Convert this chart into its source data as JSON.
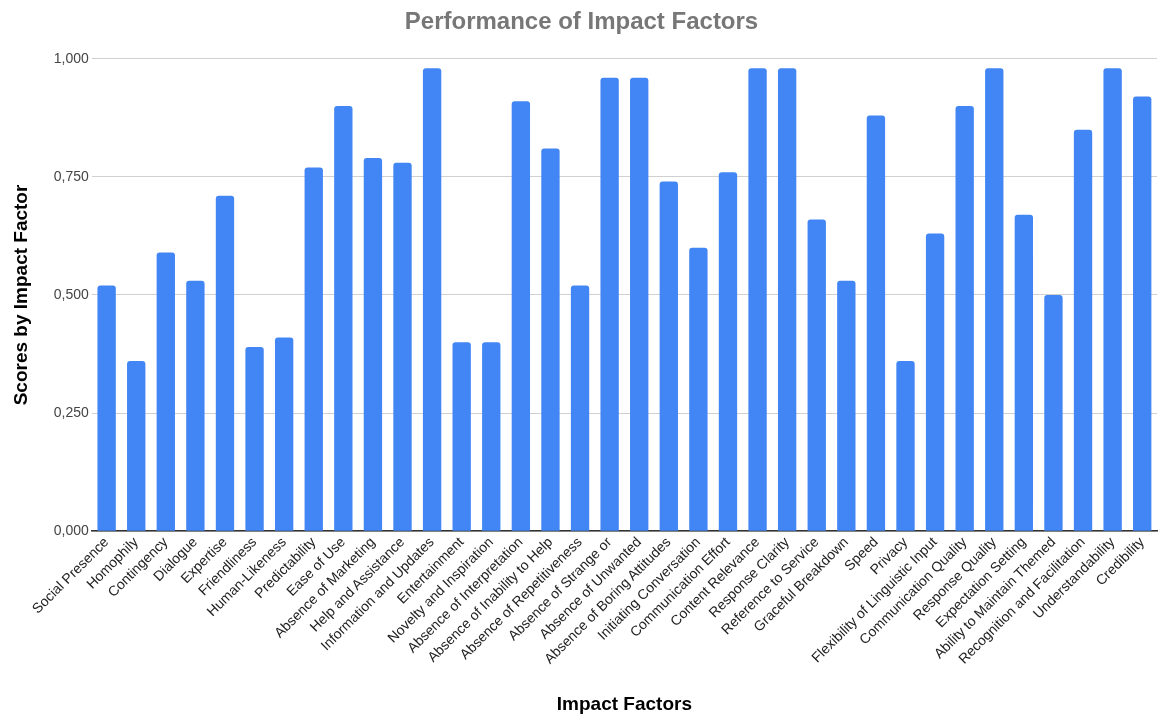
{
  "chart_data": {
    "type": "bar",
    "title": "Performance of Impact Factors",
    "xlabel": "Impact Factors",
    "ylabel": "Scores by Impact Factor",
    "categories": [
      "Social Presence",
      "Homophily",
      "Contingency",
      "Dialogue",
      "Expertise",
      "Friendliness",
      "Human-Likeness",
      "Predictability",
      "Ease of Use",
      "Absence of Marketing",
      "Help and Assistance",
      "Information and Updates",
      "Entertainment",
      "Novelty and Inspiration",
      "Absence of Interpretation",
      "Absence of Inability to Help",
      "Absence of Repetitiveness",
      "Absence of Strange or",
      "Absence of Unwanted",
      "Absence of Boring Attitudes",
      "Initiating Conversation",
      "Communication Effort",
      "Content Relevance",
      "Response Clarity",
      "Reference to Service",
      "Graceful Breakdown",
      "Speed",
      "Privacy",
      "Flexibility of Linguistic Input",
      "Communication Quality",
      "Response Quality",
      "Expectation Setting",
      "Ability to Maintain Themed",
      "Recognition and Facilitation",
      "Understandability",
      "Credibility"
    ],
    "values": [
      0.52,
      0.36,
      0.59,
      0.53,
      0.71,
      0.39,
      0.41,
      0.77,
      0.9,
      0.79,
      0.78,
      0.98,
      0.4,
      0.4,
      0.91,
      0.81,
      0.52,
      0.96,
      0.96,
      0.74,
      0.6,
      0.76,
      0.98,
      0.98,
      0.66,
      0.53,
      0.88,
      0.36,
      0.63,
      0.9,
      0.98,
      0.67,
      0.5,
      0.85,
      0.98,
      0.92
    ],
    "color": "#4285f4",
    "ylim": [
      0,
      1
    ],
    "yticks": [
      {
        "value": 0,
        "label": "0,000"
      },
      {
        "value": 0.25,
        "label": "0,250"
      },
      {
        "value": 0.5,
        "label": "0,500"
      },
      {
        "value": 0.75,
        "label": "0,750"
      },
      {
        "value": 1,
        "label": "1,000"
      }
    ],
    "grid": "y"
  }
}
